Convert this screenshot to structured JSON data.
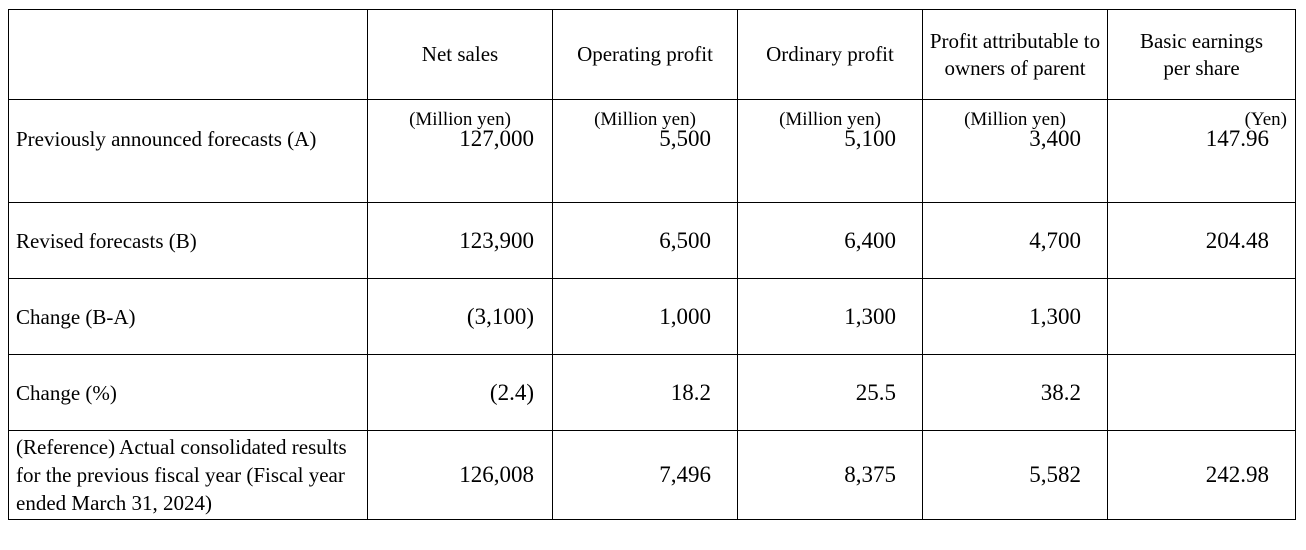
{
  "headers": {
    "net_sales": "Net sales",
    "operating_profit": "Operating profit",
    "ordinary_profit": "Ordinary profit",
    "profit_attr": "Profit attributable to owners of parent",
    "eps": "Basic earnings per share"
  },
  "units": {
    "net_sales": "(Million yen)",
    "operating_profit": "(Million yen)",
    "ordinary_profit": "(Million yen)",
    "profit_attr": "(Million yen)",
    "eps": "(Yen)"
  },
  "rows": [
    {
      "label": "Previously announced forecasts (A)",
      "net_sales": "127,000",
      "operating_profit": "5,500",
      "ordinary_profit": "5,100",
      "profit_attr": "3,400",
      "eps": "147.96"
    },
    {
      "label": "Revised forecasts (B)",
      "net_sales": "123,900",
      "operating_profit": "6,500",
      "ordinary_profit": "6,400",
      "profit_attr": "4,700",
      "eps": "204.48"
    },
    {
      "label": "Change (B-A)",
      "net_sales": "(3,100)",
      "operating_profit": "1,000",
      "ordinary_profit": "1,300",
      "profit_attr": "1,300",
      "eps": ""
    },
    {
      "label": "Change (%)",
      "net_sales": "(2.4)",
      "operating_profit": "18.2",
      "ordinary_profit": "25.5",
      "profit_attr": "38.2",
      "eps": ""
    },
    {
      "label": "(Reference) Actual consolidated results for the previous fiscal year (Fiscal year ended March 31, 2024)",
      "net_sales": "126,008",
      "operating_profit": "7,496",
      "ordinary_profit": "8,375",
      "profit_attr": "5,582",
      "eps": "242.98"
    }
  ]
}
